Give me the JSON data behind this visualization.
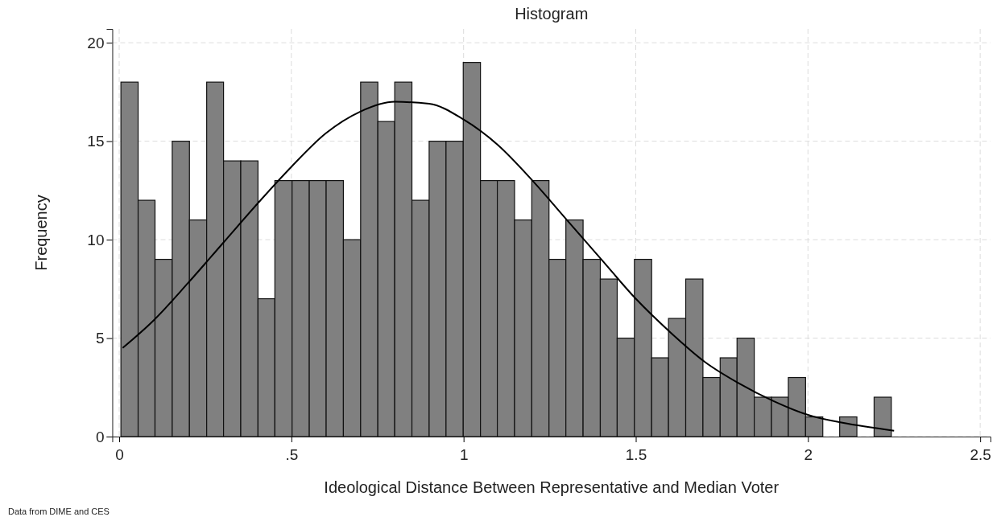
{
  "chart_data": {
    "type": "histogram",
    "title": "Histogram",
    "xlabel": "Ideological Distance Between Representative and Median Voter",
    "ylabel": "Frequency",
    "bins": [
      0.005,
      0.055,
      0.104,
      0.154,
      0.204,
      0.254,
      0.303,
      0.353,
      0.403,
      0.452,
      0.502,
      0.552,
      0.601,
      0.651,
      0.701,
      0.751,
      0.8,
      0.85,
      0.9,
      0.949,
      0.999,
      1.049,
      1.098,
      1.148,
      1.198,
      1.248,
      1.297,
      1.347,
      1.397,
      1.446,
      1.496,
      1.546,
      1.595,
      1.645,
      1.695,
      1.745,
      1.794,
      1.844,
      1.894,
      1.943,
      1.993,
      2.043,
      2.092,
      2.142,
      2.192,
      2.242
    ],
    "values": [
      18,
      12,
      9,
      15,
      11,
      18,
      14,
      14,
      7,
      13,
      13,
      13,
      13,
      10,
      18,
      16,
      18,
      12,
      15,
      15,
      19,
      13,
      13,
      11,
      13,
      9,
      11,
      9,
      8,
      5,
      9,
      4,
      6,
      8,
      3,
      4,
      5,
      2,
      2,
      3,
      1,
      0,
      1,
      0,
      2
    ],
    "color": "#808080",
    "series": [
      {
        "type": "line",
        "color": "#000000",
        "x": [
          0.01,
          0.1,
          0.2,
          0.3,
          0.4,
          0.5,
          0.6,
          0.7,
          0.8,
          0.9,
          1.0,
          1.1,
          1.2,
          1.3,
          1.4,
          1.5,
          1.6,
          1.7,
          1.8,
          1.9,
          2.0,
          2.1,
          2.25
        ],
        "values": [
          4.5,
          5.9,
          7.8,
          9.8,
          11.8,
          13.7,
          15.4,
          16.5,
          17.0,
          16.9,
          16.1,
          14.8,
          13.0,
          11.0,
          9.0,
          7.0,
          5.3,
          3.8,
          2.7,
          1.8,
          1.1,
          0.7,
          0.3
        ]
      }
    ],
    "xlim": [
      -0.02,
      2.53
    ],
    "ylim": [
      0,
      20.7
    ],
    "xticks": [
      0,
      {
        "value": 0.5,
        "label": ".5"
      },
      1,
      1.5,
      2,
      2.5
    ],
    "yticks": [
      0,
      5,
      10,
      15,
      20
    ],
    "grid": true,
    "annotations": [
      "Data from DIME and CES"
    ]
  }
}
